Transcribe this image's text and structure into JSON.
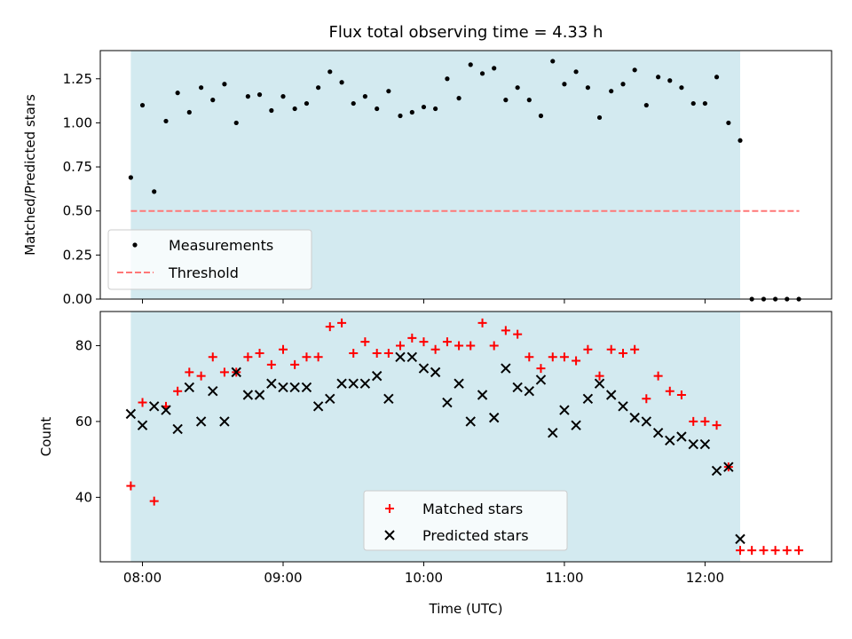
{
  "chart_data": [
    {
      "type": "scatter",
      "title": "Flux total observing time = 4.33 h",
      "xlabel": "",
      "ylabel": "Matched/Predicted stars",
      "xlim": [
        7.7,
        12.9
      ],
      "ylim": [
        0.0,
        1.41
      ],
      "yticks": [
        0.0,
        0.25,
        0.5,
        0.75,
        1.0,
        1.25
      ],
      "ytick_labels": [
        "0.00",
        "0.25",
        "0.50",
        "0.75",
        "1.00",
        "1.25"
      ],
      "xticks": [
        8,
        9,
        10,
        11,
        12
      ],
      "observing_window": [
        7.917,
        12.25
      ],
      "shade_color": "#d3eaf0",
      "threshold": {
        "label": "Threshold",
        "value": 0.5,
        "x_start": 7.917,
        "x_end": 12.67,
        "color": "#ff7777"
      },
      "legend": {
        "position": "lower-left",
        "entries": [
          "Measurements",
          "Threshold"
        ]
      },
      "series": [
        {
          "name": "Measurements",
          "color": "#000000",
          "x": [
            7.917,
            8.0,
            8.083,
            8.167,
            8.25,
            8.333,
            8.417,
            8.5,
            8.583,
            8.667,
            8.75,
            8.833,
            8.917,
            9.0,
            9.083,
            9.167,
            9.25,
            9.333,
            9.417,
            9.5,
            9.583,
            9.667,
            9.75,
            9.833,
            9.917,
            10.0,
            10.083,
            10.167,
            10.25,
            10.333,
            10.417,
            10.5,
            10.583,
            10.667,
            10.75,
            10.833,
            10.917,
            11.0,
            11.083,
            11.167,
            11.25,
            11.333,
            11.417,
            11.5,
            11.583,
            11.667,
            11.75,
            11.833,
            11.917,
            12.0,
            12.083,
            12.167,
            12.25,
            12.333,
            12.417,
            12.5,
            12.583,
            12.667
          ],
          "y": [
            0.69,
            1.1,
            0.61,
            1.01,
            1.17,
            1.06,
            1.2,
            1.13,
            1.22,
            1.0,
            1.15,
            1.16,
            1.07,
            1.15,
            1.08,
            1.11,
            1.2,
            1.29,
            1.23,
            1.11,
            1.15,
            1.08,
            1.18,
            1.04,
            1.06,
            1.09,
            1.08,
            1.25,
            1.14,
            1.33,
            1.28,
            1.31,
            1.13,
            1.2,
            1.13,
            1.04,
            1.35,
            1.22,
            1.29,
            1.2,
            1.03,
            1.18,
            1.22,
            1.3,
            1.1,
            1.26,
            1.24,
            1.2,
            1.11,
            1.11,
            1.26,
            1.0,
            0.9,
            0.0,
            0.0,
            0.0,
            0.0,
            0.0
          ]
        }
      ]
    },
    {
      "type": "scatter",
      "title": "",
      "xlabel": "Time (UTC)",
      "ylabel": "Count",
      "xlim": [
        7.7,
        12.9
      ],
      "ylim": [
        23,
        89
      ],
      "yticks": [
        40,
        60,
        80
      ],
      "ytick_labels": [
        "40",
        "60",
        "80"
      ],
      "xticks": [
        8,
        9,
        10,
        11,
        12
      ],
      "xtick_labels": [
        "08:00",
        "09:00",
        "10:00",
        "11:00",
        "12:00"
      ],
      "observing_window": [
        7.917,
        12.25
      ],
      "legend": {
        "position": "lower-center",
        "entries": [
          "Matched stars",
          "Predicted stars"
        ]
      },
      "series": [
        {
          "name": "Matched stars",
          "marker": "plus",
          "color": "#ff0000",
          "x": [
            7.917,
            8.0,
            8.083,
            8.167,
            8.25,
            8.333,
            8.417,
            8.5,
            8.583,
            8.667,
            8.75,
            8.833,
            8.917,
            9.0,
            9.083,
            9.167,
            9.25,
            9.333,
            9.417,
            9.5,
            9.583,
            9.667,
            9.75,
            9.833,
            9.917,
            10.0,
            10.083,
            10.167,
            10.25,
            10.333,
            10.417,
            10.5,
            10.583,
            10.667,
            10.75,
            10.833,
            10.917,
            11.0,
            11.083,
            11.167,
            11.25,
            11.333,
            11.417,
            11.5,
            11.583,
            11.667,
            11.75,
            11.833,
            11.917,
            12.0,
            12.083,
            12.167,
            12.25,
            12.333,
            12.417,
            12.5,
            12.583,
            12.667
          ],
          "y": [
            43,
            65,
            39,
            64,
            68,
            73,
            72,
            77,
            73,
            73,
            77,
            78,
            75,
            79,
            75,
            77,
            77,
            85,
            86,
            78,
            81,
            78,
            78,
            80,
            82,
            81,
            79,
            81,
            80,
            80,
            86,
            80,
            84,
            83,
            77,
            74,
            77,
            77,
            76,
            79,
            72,
            79,
            78,
            79,
            66,
            72,
            68,
            67,
            60,
            60,
            59,
            48,
            26,
            26,
            26,
            26,
            26,
            26
          ]
        },
        {
          "name": "Predicted stars",
          "marker": "x",
          "color": "#000000",
          "x": [
            7.917,
            8.0,
            8.083,
            8.167,
            8.25,
            8.333,
            8.417,
            8.5,
            8.583,
            8.667,
            8.75,
            8.833,
            8.917,
            9.0,
            9.083,
            9.167,
            9.25,
            9.333,
            9.417,
            9.5,
            9.583,
            9.667,
            9.75,
            9.833,
            9.917,
            10.0,
            10.083,
            10.167,
            10.25,
            10.333,
            10.417,
            10.5,
            10.583,
            10.667,
            10.75,
            10.833,
            10.917,
            11.0,
            11.083,
            11.167,
            11.25,
            11.333,
            11.417,
            11.5,
            11.583,
            11.667,
            11.75,
            11.833,
            11.917,
            12.0,
            12.083,
            12.167,
            12.25
          ],
          "y": [
            62,
            59,
            64,
            63,
            58,
            69,
            60,
            68,
            60,
            73,
            67,
            67,
            70,
            69,
            69,
            69,
            64,
            66,
            70,
            70,
            70,
            72,
            66,
            77,
            77,
            74,
            73,
            65,
            70,
            60,
            67,
            61,
            74,
            69,
            68,
            71,
            57,
            63,
            59,
            66,
            70,
            67,
            64,
            61,
            60,
            57,
            55,
            56,
            54,
            54,
            47,
            48,
            29
          ]
        }
      ]
    }
  ]
}
